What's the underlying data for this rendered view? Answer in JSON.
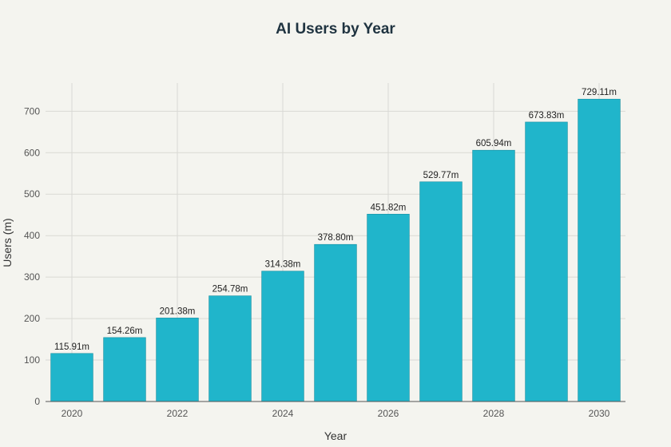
{
  "chart_data": {
    "type": "bar",
    "title": "AI Users by Year",
    "xlabel": "Year",
    "ylabel": "Users (m)",
    "categories": [
      "2020",
      "2021",
      "2022",
      "2023",
      "2024",
      "2025",
      "2026",
      "2027",
      "2028",
      "2029",
      "2030"
    ],
    "x_tick_labels": [
      "2020",
      "2022",
      "2024",
      "2026",
      "2028",
      "2030"
    ],
    "values": [
      115.91,
      154.26,
      201.38,
      254.78,
      314.38,
      378.8,
      451.82,
      529.77,
      605.94,
      673.83,
      729.11
    ],
    "data_labels": [
      "115.91m",
      "154.26m",
      "201.38m",
      "254.78m",
      "314.38m",
      "378.80m",
      "451.82m",
      "529.77m",
      "605.94m",
      "673.83m",
      "729.11m"
    ],
    "y_ticks": [
      0,
      100,
      200,
      300,
      400,
      500,
      600,
      700
    ],
    "ylim": [
      0,
      768
    ],
    "grid": true,
    "bar_color": "#20b5cb",
    "bar_edge_color": "#178fa1"
  }
}
